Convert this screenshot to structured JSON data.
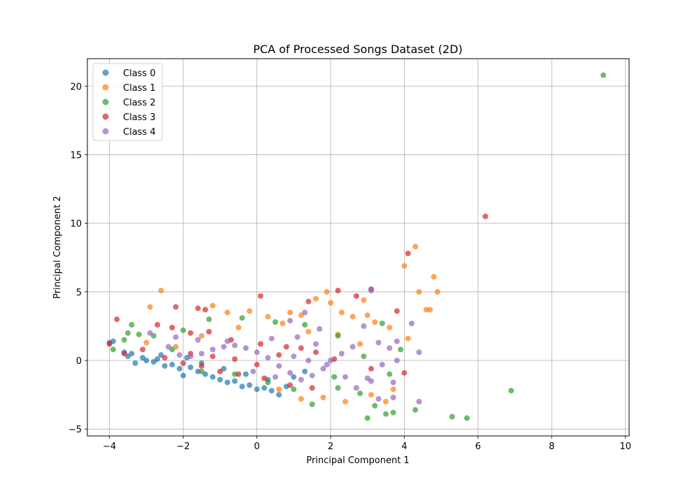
{
  "chart_data": {
    "type": "scatter",
    "title": "PCA of Processed Songs Dataset (2D)",
    "xlabel": "Principal Component 1",
    "ylabel": "Principal Component 2",
    "xlim": [
      -4.6,
      10.1
    ],
    "ylim": [
      -5.5,
      22.0
    ],
    "xticks": [
      -4,
      -2,
      0,
      2,
      4,
      6,
      8,
      10
    ],
    "yticks": [
      -5,
      0,
      5,
      10,
      15,
      20
    ],
    "grid": true,
    "legend_position": "top-left",
    "series": [
      {
        "name": "Class 0",
        "color": "#1f77b4",
        "points": [
          [
            -4.0,
            1.3
          ],
          [
            -3.9,
            1.4
          ],
          [
            -3.6,
            0.6
          ],
          [
            -3.5,
            0.3
          ],
          [
            -3.4,
            0.5
          ],
          [
            -3.3,
            -0.2
          ],
          [
            -3.1,
            0.2
          ],
          [
            -3.0,
            0.0
          ],
          [
            -2.8,
            -0.1
          ],
          [
            -2.7,
            0.1
          ],
          [
            -2.5,
            -0.4
          ],
          [
            -2.3,
            -0.3
          ],
          [
            -2.1,
            -0.6
          ],
          [
            -2.0,
            -1.1
          ],
          [
            -1.8,
            -0.5
          ],
          [
            -1.6,
            -0.8
          ],
          [
            -1.4,
            -1.0
          ],
          [
            -1.2,
            -1.2
          ],
          [
            -1.0,
            -1.4
          ],
          [
            -0.8,
            -1.6
          ],
          [
            -0.6,
            -1.5
          ],
          [
            -0.4,
            -1.9
          ],
          [
            -0.2,
            -1.8
          ],
          [
            0.0,
            -2.1
          ],
          [
            0.2,
            -2.0
          ],
          [
            0.4,
            -2.2
          ],
          [
            0.6,
            -2.5
          ],
          [
            0.8,
            -1.9
          ],
          [
            1.0,
            -1.2
          ],
          [
            1.3,
            -0.8
          ],
          [
            -2.6,
            0.4
          ],
          [
            -1.9,
            0.2
          ],
          [
            -1.5,
            -0.2
          ],
          [
            -0.9,
            -0.6
          ],
          [
            -0.3,
            -1.0
          ],
          [
            0.3,
            -1.4
          ]
        ]
      },
      {
        "name": "Class 1",
        "color": "#ff7f0e",
        "points": [
          [
            -2.6,
            5.1
          ],
          [
            -2.9,
            3.9
          ],
          [
            -1.2,
            4.0
          ],
          [
            -0.8,
            3.5
          ],
          [
            -0.2,
            3.6
          ],
          [
            0.3,
            3.2
          ],
          [
            0.9,
            3.5
          ],
          [
            1.2,
            3.3
          ],
          [
            1.6,
            4.5
          ],
          [
            1.9,
            5.0
          ],
          [
            2.0,
            4.2
          ],
          [
            2.3,
            3.5
          ],
          [
            2.6,
            3.2
          ],
          [
            2.9,
            4.4
          ],
          [
            3.0,
            3.3
          ],
          [
            3.2,
            2.8
          ],
          [
            3.6,
            2.4
          ],
          [
            4.0,
            6.9
          ],
          [
            4.3,
            8.3
          ],
          [
            4.4,
            5.0
          ],
          [
            4.6,
            3.7
          ],
          [
            4.7,
            3.7
          ],
          [
            4.8,
            6.1
          ],
          [
            4.9,
            5.0
          ],
          [
            4.1,
            1.6
          ],
          [
            3.7,
            -2.1
          ],
          [
            3.5,
            -3.0
          ],
          [
            3.1,
            -2.5
          ],
          [
            2.4,
            -3.0
          ],
          [
            1.8,
            -2.7
          ],
          [
            1.2,
            -2.8
          ],
          [
            0.6,
            -2.1
          ],
          [
            -1.5,
            1.8
          ],
          [
            -0.5,
            2.4
          ],
          [
            0.7,
            2.7
          ],
          [
            1.4,
            2.1
          ],
          [
            2.2,
            1.9
          ],
          [
            2.8,
            1.2
          ],
          [
            -3.0,
            1.3
          ],
          [
            -2.2,
            1.0
          ]
        ]
      },
      {
        "name": "Class 2",
        "color": "#2ca02c",
        "points": [
          [
            9.4,
            20.8
          ],
          [
            6.9,
            -2.2
          ],
          [
            5.7,
            -4.2
          ],
          [
            5.3,
            -4.1
          ],
          [
            4.3,
            -3.6
          ],
          [
            3.7,
            -3.8
          ],
          [
            3.5,
            -3.9
          ],
          [
            3.0,
            -4.2
          ],
          [
            3.2,
            -3.3
          ],
          [
            2.8,
            -2.4
          ],
          [
            2.2,
            -2.0
          ],
          [
            1.5,
            -3.2
          ],
          [
            1.0,
            -2.1
          ],
          [
            0.3,
            -1.6
          ],
          [
            -0.6,
            -1.0
          ],
          [
            -1.5,
            -0.8
          ],
          [
            -2.3,
            0.8
          ],
          [
            -3.2,
            1.9
          ],
          [
            -3.5,
            2.0
          ],
          [
            -3.6,
            1.5
          ],
          [
            -3.4,
            2.6
          ],
          [
            -3.9,
            0.8
          ],
          [
            -2.8,
            1.8
          ],
          [
            -2.0,
            2.2
          ],
          [
            -1.3,
            3.0
          ],
          [
            -0.4,
            3.1
          ],
          [
            0.5,
            2.8
          ],
          [
            1.3,
            2.6
          ],
          [
            2.2,
            1.8
          ],
          [
            3.4,
            2.7
          ],
          [
            3.9,
            0.8
          ],
          [
            3.6,
            -1.0
          ],
          [
            2.9,
            0.3
          ],
          [
            2.1,
            -1.2
          ]
        ]
      },
      {
        "name": "Class 3",
        "color": "#d62728",
        "points": [
          [
            6.2,
            10.5
          ],
          [
            4.1,
            7.8
          ],
          [
            3.8,
            3.6
          ],
          [
            3.1,
            5.2
          ],
          [
            2.7,
            4.7
          ],
          [
            2.2,
            5.1
          ],
          [
            1.4,
            4.3
          ],
          [
            0.1,
            4.7
          ],
          [
            -1.6,
            3.8
          ],
          [
            -1.4,
            3.7
          ],
          [
            -2.2,
            3.9
          ],
          [
            -3.8,
            3.0
          ],
          [
            -2.7,
            2.6
          ],
          [
            -2.3,
            2.4
          ],
          [
            -1.8,
            2.0
          ],
          [
            -1.3,
            2.1
          ],
          [
            -0.7,
            1.5
          ],
          [
            0.1,
            1.2
          ],
          [
            0.8,
            1.0
          ],
          [
            1.6,
            0.6
          ],
          [
            2.1,
            0.1
          ],
          [
            3.1,
            -0.6
          ],
          [
            4.0,
            -0.9
          ],
          [
            -4.0,
            1.2
          ],
          [
            -3.6,
            0.5
          ],
          [
            -3.1,
            0.8
          ],
          [
            -2.5,
            0.2
          ],
          [
            -2.0,
            -0.2
          ],
          [
            -1.5,
            -0.4
          ],
          [
            -1.0,
            -0.8
          ],
          [
            -0.5,
            -1.0
          ],
          [
            0.2,
            -1.3
          ],
          [
            0.9,
            -1.8
          ],
          [
            1.5,
            -2.0
          ],
          [
            -1.8,
            0.5
          ],
          [
            -1.2,
            0.3
          ],
          [
            -0.6,
            0.1
          ],
          [
            0.0,
            -0.3
          ],
          [
            0.6,
            0.4
          ],
          [
            1.2,
            0.9
          ]
        ]
      },
      {
        "name": "Class 4",
        "color": "#9467bd",
        "points": [
          [
            4.2,
            2.7
          ],
          [
            4.4,
            0.6
          ],
          [
            4.4,
            -3.0
          ],
          [
            3.7,
            -1.6
          ],
          [
            3.7,
            -2.7
          ],
          [
            3.3,
            -2.8
          ],
          [
            3.1,
            -1.5
          ],
          [
            3.0,
            -1.3
          ],
          [
            3.1,
            5.1
          ],
          [
            3.8,
            1.4
          ],
          [
            3.6,
            0.9
          ],
          [
            3.3,
            1.3
          ],
          [
            2.9,
            2.5
          ],
          [
            2.6,
            1.0
          ],
          [
            2.3,
            0.5
          ],
          [
            2.0,
            0.0
          ],
          [
            1.8,
            -0.6
          ],
          [
            1.5,
            -1.1
          ],
          [
            1.2,
            -1.4
          ],
          [
            0.9,
            -0.9
          ],
          [
            0.6,
            -0.4
          ],
          [
            0.3,
            0.2
          ],
          [
            0.0,
            0.6
          ],
          [
            -0.3,
            0.9
          ],
          [
            -0.6,
            1.1
          ],
          [
            -0.9,
            1.0
          ],
          [
            -1.2,
            0.8
          ],
          [
            -1.5,
            0.5
          ],
          [
            -1.8,
            0.3
          ],
          [
            -2.1,
            0.4
          ],
          [
            -2.4,
            1.0
          ],
          [
            -2.9,
            2.0
          ],
          [
            -2.2,
            1.7
          ],
          [
            -1.6,
            1.5
          ],
          [
            -0.8,
            1.4
          ],
          [
            0.4,
            1.6
          ],
          [
            1.1,
            1.7
          ],
          [
            1.6,
            1.2
          ],
          [
            1.9,
            -0.3
          ],
          [
            2.4,
            -1.2
          ],
          [
            2.7,
            -2.0
          ],
          [
            3.4,
            -0.3
          ],
          [
            3.8,
            0.0
          ],
          [
            1.3,
            3.5
          ],
          [
            0.9,
            2.9
          ],
          [
            1.7,
            2.3
          ],
          [
            -0.1,
            -0.8
          ],
          [
            0.5,
            -1.2
          ],
          [
            1.0,
            0.3
          ],
          [
            1.4,
            0.0
          ]
        ]
      }
    ]
  }
}
